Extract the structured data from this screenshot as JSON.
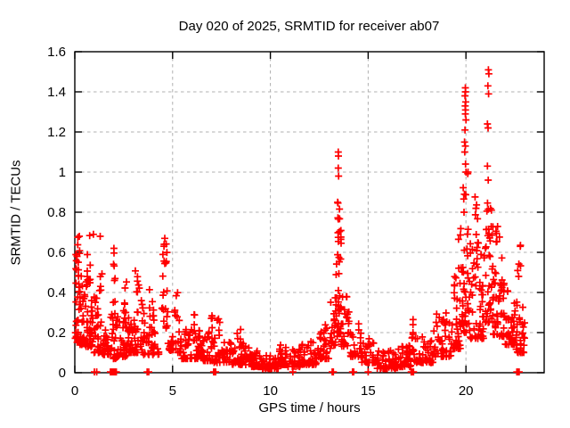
{
  "title": "Day 020 of 2025, SRMTID for receiver ab07",
  "chart_data": {
    "type": "scatter",
    "title": "Day 020 of 2025, SRMTID for receiver ab07",
    "xlabel": "GPS time / hours",
    "ylabel": "SRMTID / TECUs",
    "xlim": [
      0,
      24
    ],
    "ylim": [
      0,
      1.6
    ],
    "xticks": [
      0,
      5,
      10,
      15,
      20
    ],
    "yticks": [
      0,
      0.2,
      0.4,
      0.6,
      0.8,
      1,
      1.2,
      1.4,
      1.6
    ],
    "grid": "dashed-gray-both-axes",
    "legend": "none",
    "marker": "plus",
    "marker_color": "#ff0000",
    "series_name": "SRMTID",
    "peak_points": [
      [
        13.47,
        1.1
      ],
      [
        13.48,
        1.08
      ],
      [
        13.47,
        1.02
      ],
      [
        13.49,
        0.98
      ],
      [
        13.44,
        0.85
      ],
      [
        19.97,
        1.42
      ],
      [
        19.98,
        1.4
      ],
      [
        19.95,
        1.38
      ],
      [
        19.99,
        1.35
      ],
      [
        19.96,
        1.33
      ],
      [
        19.98,
        1.31
      ],
      [
        19.97,
        1.29
      ],
      [
        20.0,
        1.26
      ],
      [
        19.95,
        1.21
      ],
      [
        19.93,
        1.15
      ],
      [
        19.97,
        1.13
      ],
      [
        19.94,
        1.1
      ],
      [
        19.98,
        1.04
      ],
      [
        20.0,
        1.0
      ],
      [
        19.92,
        0.89
      ],
      [
        19.9,
        0.8
      ],
      [
        21.15,
        1.51
      ],
      [
        21.17,
        1.49
      ],
      [
        21.12,
        1.43
      ],
      [
        21.16,
        1.39
      ],
      [
        21.1,
        1.24
      ],
      [
        21.13,
        1.22
      ],
      [
        21.1,
        1.03
      ],
      [
        21.14,
        0.96
      ],
      [
        0.23,
        0.68
      ],
      [
        0.95,
        0.69
      ],
      [
        1.3,
        0.68
      ],
      [
        2.0,
        0.62
      ],
      [
        4.6,
        0.67
      ],
      [
        4.57,
        0.64
      ]
    ],
    "zero_level_points": [
      1.0,
      1.12,
      1.82,
      1.88,
      1.94,
      2.0,
      2.06,
      2.12,
      3.7,
      3.78,
      7.1,
      7.15,
      7.2,
      11.15,
      13.16,
      13.22,
      14.2,
      14.26,
      15.0,
      17.2,
      17.26,
      17.32,
      22.6,
      22.66,
      22.72
    ],
    "clusters_format": "[hour_start, hour_end, count, y_min, y_max, bias_exponent] — density envelope approximating ~2900 samples read from the plot",
    "clusters": [
      [
        0.02,
        0.25,
        35,
        0.15,
        0.62,
        2.2
      ],
      [
        0.05,
        0.3,
        8,
        0.45,
        0.68,
        1.2
      ],
      [
        0.25,
        0.55,
        30,
        0.14,
        0.5,
        2.4
      ],
      [
        0.55,
        0.95,
        40,
        0.13,
        0.48,
        2.4
      ],
      [
        0.6,
        0.85,
        8,
        0.45,
        0.69,
        1.2
      ],
      [
        0.95,
        1.35,
        30,
        0.1,
        0.38,
        2.4
      ],
      [
        1.25,
        1.4,
        5,
        0.4,
        0.68,
        1.3
      ],
      [
        1.4,
        1.85,
        30,
        0.09,
        0.32,
        2.4
      ],
      [
        1.85,
        2.15,
        20,
        0.07,
        0.3,
        2.4
      ],
      [
        1.95,
        2.1,
        7,
        0.35,
        0.62,
        1.3
      ],
      [
        2.15,
        2.75,
        40,
        0.08,
        0.3,
        2.5
      ],
      [
        2.45,
        2.7,
        6,
        0.3,
        0.47,
        1.5
      ],
      [
        2.75,
        3.5,
        45,
        0.1,
        0.38,
        2.4
      ],
      [
        3.05,
        3.35,
        7,
        0.38,
        0.53,
        1.4
      ],
      [
        3.5,
        4.3,
        40,
        0.09,
        0.3,
        2.4
      ],
      [
        3.8,
        4.1,
        6,
        0.28,
        0.42,
        1.5
      ],
      [
        4.45,
        4.75,
        22,
        0.22,
        0.67,
        1.3
      ],
      [
        4.75,
        5.45,
        30,
        0.1,
        0.3,
        2.4
      ],
      [
        5.1,
        5.3,
        5,
        0.28,
        0.4,
        1.4
      ],
      [
        5.45,
        6.45,
        50,
        0.07,
        0.22,
        2.4
      ],
      [
        5.9,
        6.15,
        6,
        0.2,
        0.31,
        1.5
      ],
      [
        6.45,
        7.1,
        40,
        0.06,
        0.2,
        2.4
      ],
      [
        6.85,
        7.05,
        6,
        0.2,
        0.33,
        1.4
      ],
      [
        7.1,
        8.05,
        45,
        0.05,
        0.18,
        2.4
      ],
      [
        7.25,
        7.45,
        5,
        0.18,
        0.27,
        1.5
      ],
      [
        8.05,
        9.0,
        50,
        0.04,
        0.15,
        2.4
      ],
      [
        8.25,
        8.5,
        5,
        0.15,
        0.22,
        1.5
      ],
      [
        9.0,
        9.6,
        40,
        0.03,
        0.12,
        2.4
      ],
      [
        9.6,
        10.45,
        50,
        0.02,
        0.09,
        2.4
      ],
      [
        10.45,
        10.85,
        25,
        0.04,
        0.17,
        2.2
      ],
      [
        10.85,
        11.55,
        35,
        0.03,
        0.12,
        2.4
      ],
      [
        11.55,
        12.35,
        40,
        0.04,
        0.16,
        2.4
      ],
      [
        12.35,
        13.05,
        35,
        0.07,
        0.27,
        2.2
      ],
      [
        13.05,
        13.35,
        20,
        0.12,
        0.42,
        2.0
      ],
      [
        13.35,
        13.62,
        45,
        0.18,
        0.72,
        1.5
      ],
      [
        13.45,
        13.55,
        6,
        0.72,
        0.95,
        1.2
      ],
      [
        13.62,
        14.1,
        28,
        0.13,
        0.45,
        2.2
      ],
      [
        14.1,
        14.65,
        25,
        0.08,
        0.25,
        2.4
      ],
      [
        14.65,
        15.45,
        35,
        0.05,
        0.17,
        2.4
      ],
      [
        15.45,
        16.55,
        55,
        0.02,
        0.11,
        2.4
      ],
      [
        16.55,
        17.25,
        40,
        0.03,
        0.14,
        2.4
      ],
      [
        17.2,
        17.35,
        10,
        0.08,
        0.28,
        1.4
      ],
      [
        17.35,
        18.35,
        45,
        0.05,
        0.19,
        2.4
      ],
      [
        18.35,
        19.25,
        45,
        0.08,
        0.3,
        2.3
      ],
      [
        19.25,
        19.8,
        40,
        0.12,
        0.5,
        2.2
      ],
      [
        19.55,
        19.75,
        5,
        0.5,
        0.75,
        1.3
      ],
      [
        19.8,
        20.2,
        45,
        0.2,
        1.0,
        1.8
      ],
      [
        20.2,
        20.9,
        50,
        0.17,
        0.65,
        2.2
      ],
      [
        20.3,
        20.6,
        8,
        0.6,
        0.92,
        1.3
      ],
      [
        20.9,
        21.4,
        45,
        0.25,
        0.85,
        1.7
      ],
      [
        21.4,
        22.0,
        45,
        0.18,
        0.6,
        2.1
      ],
      [
        21.5,
        21.8,
        6,
        0.6,
        0.78,
        1.3
      ],
      [
        22.0,
        22.55,
        35,
        0.14,
        0.42,
        2.2
      ],
      [
        22.6,
        22.8,
        6,
        0.42,
        0.65,
        1.3
      ],
      [
        22.55,
        23.05,
        30,
        0.1,
        0.38,
        2.2
      ]
    ]
  }
}
